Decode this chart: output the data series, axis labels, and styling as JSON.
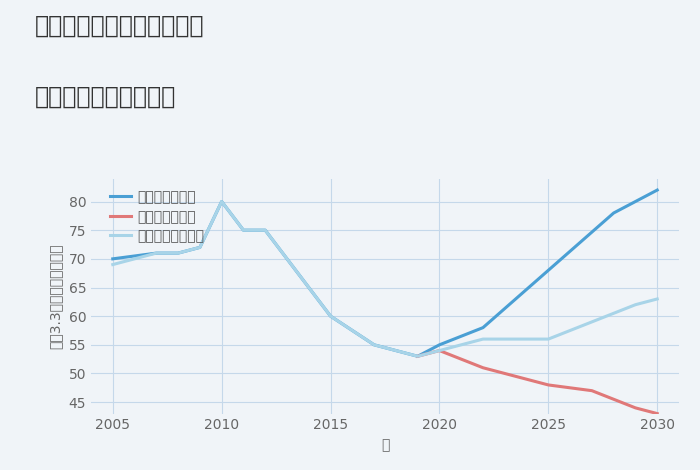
{
  "title_line1": "三重県松阪市飯南町深野の",
  "title_line2": "中古戸建ての価格推移",
  "xlabel": "年",
  "ylabel": "平（3.3㎡）単価（万円）",
  "background_color": "#f0f4f8",
  "plot_bg_color": "#f0f4f8",
  "good_label": "グッドシナリオ",
  "bad_label": "バッドシナリオ",
  "normal_label": "ノーマルシナリオ",
  "good_color": "#4a9fd4",
  "bad_color": "#e07878",
  "normal_color": "#a8d4e8",
  "good_years": [
    2005,
    2007,
    2008,
    2009,
    2010,
    2011,
    2012,
    2015,
    2017,
    2019,
    2020,
    2022,
    2025,
    2028,
    2030
  ],
  "good_values": [
    70,
    71,
    71,
    72,
    80,
    75,
    75,
    60,
    55,
    53,
    55,
    58,
    68,
    78,
    82
  ],
  "bad_years": [
    2019,
    2020,
    2022,
    2024,
    2025,
    2027,
    2029,
    2030
  ],
  "bad_values": [
    53,
    54,
    51,
    49,
    48,
    47,
    44,
    43
  ],
  "normal_years": [
    2005,
    2007,
    2008,
    2009,
    2010,
    2011,
    2012,
    2015,
    2017,
    2019,
    2020,
    2022,
    2025,
    2027,
    2029,
    2030
  ],
  "normal_values": [
    69,
    71,
    71,
    72,
    80,
    75,
    75,
    60,
    55,
    53,
    54,
    56,
    56,
    59,
    62,
    63
  ],
  "ylim": [
    43,
    84
  ],
  "yticks": [
    45,
    50,
    55,
    60,
    65,
    70,
    75,
    80
  ],
  "xlim": [
    2004,
    2031
  ],
  "xticks": [
    2005,
    2010,
    2015,
    2020,
    2025,
    2030
  ],
  "title_fontsize": 17,
  "label_fontsize": 10,
  "tick_fontsize": 10,
  "legend_fontsize": 10,
  "line_width": 2.2
}
